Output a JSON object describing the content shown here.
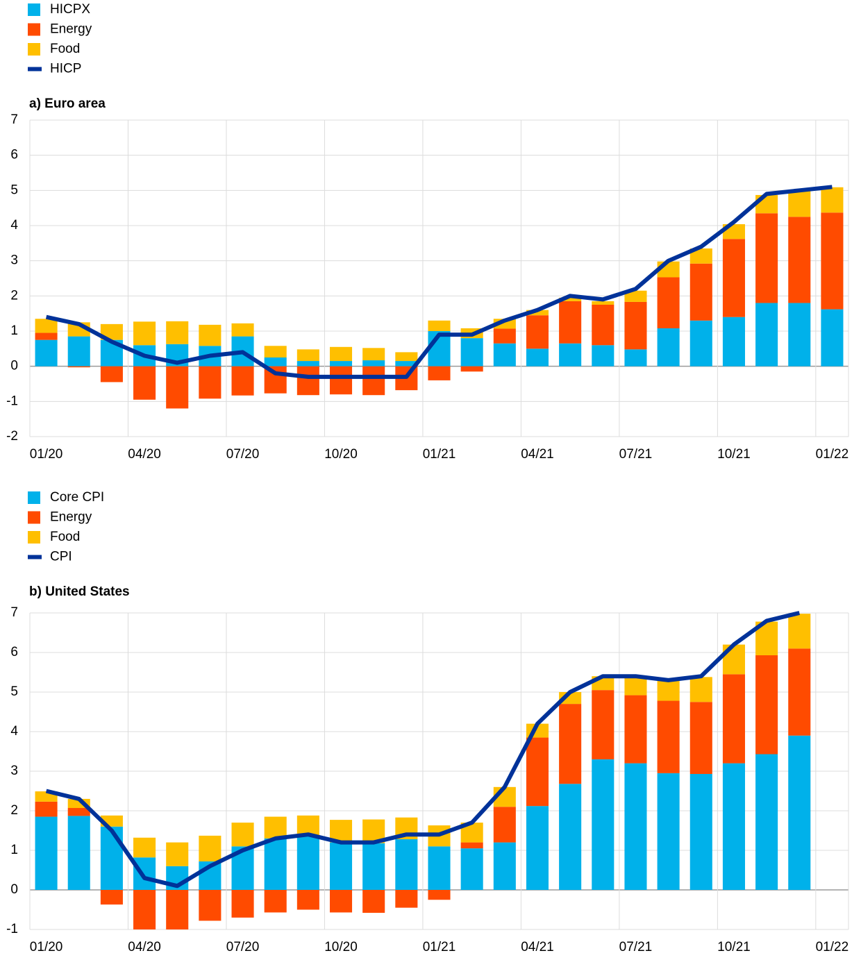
{
  "chart_data": [
    {
      "type": "bar",
      "stacked": true,
      "title": "a) Euro area",
      "grid": true,
      "legend": "top-left",
      "categories": [
        "01/20",
        null,
        null,
        "04/20",
        null,
        null,
        "07/20",
        null,
        null,
        "10/20",
        null,
        null,
        "01/21",
        null,
        null,
        "04/21",
        null,
        null,
        "07/21",
        null,
        null,
        "10/21",
        null,
        null,
        "01/22"
      ],
      "ylim": [
        -2,
        7
      ],
      "yticks": [
        -2,
        -1,
        0,
        1,
        2,
        3,
        4,
        5,
        6,
        7
      ],
      "series": [
        {
          "name": "HICPX",
          "type": "bar",
          "color": "#00b1ea",
          "values": [
            0.75,
            0.85,
            0.75,
            0.6,
            0.63,
            0.58,
            0.85,
            0.25,
            0.15,
            0.15,
            0.17,
            0.15,
            1.0,
            0.8,
            0.65,
            0.5,
            0.65,
            0.6,
            0.48,
            1.08,
            1.3,
            1.4,
            1.8,
            1.8,
            1.62
          ]
        },
        {
          "name": "Energy",
          "type": "bar",
          "color": "#ff4b00",
          "values": [
            0.2,
            -0.03,
            -0.45,
            -0.95,
            -1.2,
            -0.92,
            -0.83,
            -0.77,
            -0.82,
            -0.8,
            -0.82,
            -0.68,
            -0.4,
            -0.15,
            0.42,
            0.95,
            1.2,
            1.15,
            1.35,
            1.45,
            1.62,
            2.22,
            2.55,
            2.45,
            2.75
          ]
        },
        {
          "name": "Food",
          "type": "bar",
          "color": "#ffbf00",
          "values": [
            0.4,
            0.4,
            0.45,
            0.67,
            0.65,
            0.6,
            0.37,
            0.33,
            0.33,
            0.4,
            0.35,
            0.25,
            0.3,
            0.28,
            0.28,
            0.15,
            0.1,
            0.1,
            0.32,
            0.45,
            0.43,
            0.42,
            0.52,
            0.75,
            0.72
          ]
        },
        {
          "name": "HICP",
          "type": "line",
          "color": "#003299",
          "values": [
            1.4,
            1.2,
            0.7,
            0.3,
            0.1,
            0.3,
            0.4,
            -0.2,
            -0.3,
            -0.3,
            -0.3,
            -0.3,
            0.9,
            0.9,
            1.3,
            1.6,
            2.0,
            1.9,
            2.2,
            3.0,
            3.4,
            4.1,
            4.9,
            5.0,
            5.1
          ]
        }
      ]
    },
    {
      "type": "bar",
      "stacked": true,
      "title": "b) United States",
      "grid": true,
      "legend": "top-left",
      "categories": [
        "01/20",
        null,
        null,
        "04/20",
        null,
        null,
        "07/20",
        null,
        null,
        "10/20",
        null,
        null,
        "01/21",
        null,
        null,
        "04/21",
        null,
        null,
        "07/21",
        null,
        null,
        "10/21",
        null,
        null,
        "01/22"
      ],
      "ylim": [
        -1,
        7
      ],
      "yticks": [
        -1,
        0,
        1,
        2,
        3,
        4,
        5,
        6,
        7
      ],
      "series": [
        {
          "name": "Core CPI",
          "type": "bar",
          "color": "#00b1ea",
          "values": [
            1.85,
            1.87,
            1.6,
            0.82,
            0.6,
            0.72,
            1.1,
            1.3,
            1.38,
            1.2,
            1.18,
            1.28,
            1.1,
            1.05,
            1.2,
            2.12,
            2.68,
            3.3,
            3.2,
            2.95,
            2.93,
            3.2,
            3.43,
            3.9,
            null
          ]
        },
        {
          "name": "Energy",
          "type": "bar",
          "color": "#ff4b00",
          "values": [
            0.38,
            0.2,
            -0.37,
            -1.05,
            -1.05,
            -0.78,
            -0.7,
            -0.57,
            -0.5,
            -0.57,
            -0.58,
            -0.45,
            -0.25,
            0.15,
            0.9,
            1.73,
            2.02,
            1.75,
            1.72,
            1.83,
            1.82,
            2.25,
            2.5,
            2.2,
            null
          ]
        },
        {
          "name": "Food",
          "type": "bar",
          "color": "#ffbf00",
          "values": [
            0.26,
            0.23,
            0.28,
            0.5,
            0.6,
            0.65,
            0.6,
            0.55,
            0.5,
            0.57,
            0.6,
            0.55,
            0.53,
            0.5,
            0.5,
            0.35,
            0.3,
            0.35,
            0.48,
            0.5,
            0.63,
            0.75,
            0.85,
            0.88,
            null
          ]
        },
        {
          "name": "CPI",
          "type": "line",
          "color": "#003299",
          "values": [
            2.5,
            2.3,
            1.5,
            0.3,
            0.1,
            0.6,
            1.0,
            1.3,
            1.4,
            1.2,
            1.2,
            1.4,
            1.4,
            1.7,
            2.6,
            4.2,
            5.0,
            5.4,
            5.4,
            5.3,
            5.4,
            6.2,
            6.8,
            7.0,
            null
          ]
        }
      ]
    }
  ]
}
